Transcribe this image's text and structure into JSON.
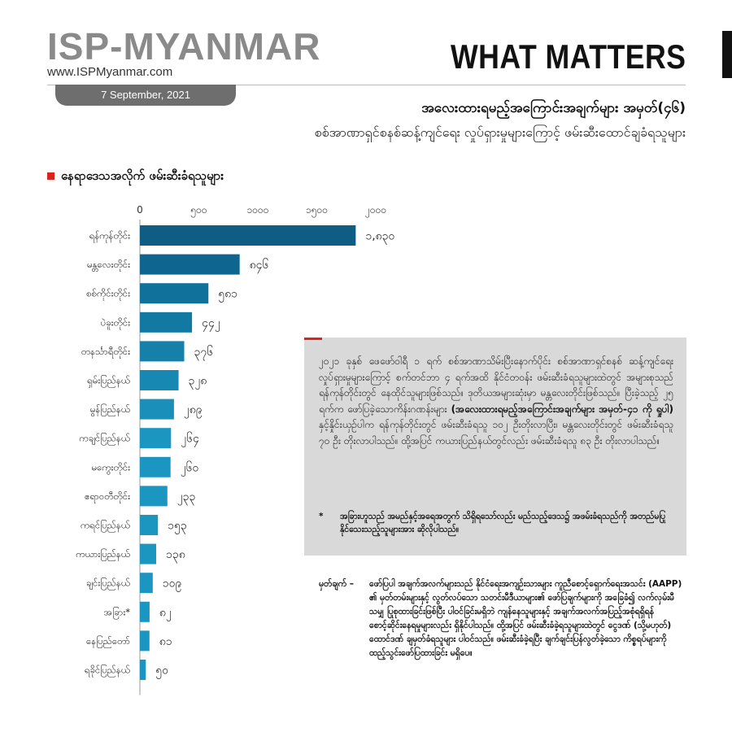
{
  "header": {
    "logo": "ISP-MYANMAR",
    "website": "www.ISPMyanmar.com",
    "date": "7 September, 2021",
    "brand": "WHAT MATTERS"
  },
  "titles": {
    "line1": "အလေးထားရမည့်အကြောင်းအချက်များ အမှတ်(၄၆)",
    "line2": "စစ်အာဏာရှင်စနစ်ဆန့်ကျင်ရေး လှုပ်ရှားမှုများကြောင့် ဖမ်းဆီးထောင်ချခံရသူများ"
  },
  "section_title": "နေရာဒေသအလိုက် ဖမ်းဆီးခံရသူများ",
  "chart_data": {
    "type": "bar",
    "orientation": "horizontal",
    "categories": [
      "ရန်ကုန်တိုင်း",
      "မန္တလေးတိုင်း",
      "စစ်ကိုင်းတိုင်း",
      "ပဲခူးတိုင်း",
      "တနင်္သာရီတိုင်း",
      "ရှမ်းပြည်နယ်",
      "မွန်ပြည်နယ်",
      "ကချင်ပြည်နယ်",
      "မကွေးတိုင်း",
      "ဧရာဝတီတိုင်း",
      "ကရင်ပြည်နယ်",
      "ကယားပြည်နယ်",
      "ချင်းပြည်နယ်",
      "အခြား*",
      "နေပြည်တော်",
      "ရခိုင်ပြည်နယ်"
    ],
    "values": [
      1830,
      846,
      581,
      442,
      376,
      328,
      289,
      264,
      260,
      233,
      153,
      138,
      109,
      82,
      81,
      50
    ],
    "value_labels": [
      "၁,၈၃၀",
      "၈၄၆",
      "၅၈၁",
      "၄၄၂",
      "၃၇၆",
      "၃၂၈",
      "၂၈၉",
      "၂၆၄",
      "၂၆၀",
      "၂၃၃",
      "၁၅၃",
      "၁၃၈",
      "၁၀၉",
      "၈၂",
      "၈၁",
      "၅၀"
    ],
    "ticks": [
      0,
      500,
      1000,
      1500,
      2000
    ],
    "tick_labels": [
      "0",
      "၅၀၀",
      "၁၀၀၀",
      "၁၅၀၀",
      "၂၀၀၀"
    ],
    "xlim": [
      0,
      2000
    ],
    "title": "နေရာဒေသအလိုက် ဖမ်းဆီးခံရသူများ",
    "xlabel": "",
    "ylabel": "",
    "grid": false,
    "colors": [
      "#0f5c85",
      "#0e6690",
      "#10719b",
      "#1279a3",
      "#1580aa",
      "#1788b2",
      "#198fb9",
      "#1b96c0",
      "#1b96c0",
      "#1b96c0",
      "#1b96c0",
      "#1b96c0",
      "#1b96c0",
      "#1b96c0",
      "#1b96c0",
      "#1b96c0"
    ]
  },
  "infobox": {
    "paragraph_before": "၂၀၂၁ ခုနှစ် ဖေဖော်ဝါရီ ၁ ရက် စစ်အာဏာသိမ်းပြီးနောက်ပိုင်း စစ်အာဏာရှင်စနစ် ဆန့်ကျင်ရေး လှုပ်ရှားမှုများကြောင့် စက်တင်ဘာ ၄ ရက်အထိ နိုင်ငံတဝန်း ဖမ်းဆီးခံရသူများထဲတွင် အများစုသည် ရန်ကုန်တိုင်းတွင် နေထိုင်သူများဖြစ်သည်။ ဒုတိယအများဆုံးမှာ မန္တလေးတိုင်းဖြစ်သည်။ ပြီးခဲ့သည့် ၂၅ ရက်က ဖော်ပြခဲ့သောကိန်းဂဏန်းများ ",
    "paragraph_bold": "(အလေးထားရမည့်အကြောင်းအချက်များ အမှတ်-၄၁ ကို ရှုပါ)",
    "paragraph_after": " နှင့်နှိုင်းယှဉ်ပါက ရန်ကုန်တိုင်းတွင် ဖမ်းဆီးခံရသူ ၁၀၂ ဦးတိုးလာပြီး၊ မန္တလေးတိုင်းတွင် ဖမ်းဆီးခံရသူ ၇၀ ဦး တိုးလာပါသည်။ ထို့အပြင် ကယားပြည်နယ်တွင်လည်း ဖမ်းဆီးခံရသူ ၈၃ ဦး တိုးလာပါသည်။",
    "footnote_mark": "*",
    "footnote": "အခြားဟူသည် အမည်နှင့်အရေအတွက် သိရှိရသော်လည်း မည်သည့်ဒေသ၌ အဖမ်းခံရသည်ကို အတည်မပြုနိုင်သေးသည့်သူများအား ဆိုလိုပါသည်။"
  },
  "note": {
    "label": "မှတ်ချက် –",
    "text": "ဖော်ပြပါ အချက်အလက်များသည် နိုင်ငံရေးအကျဉ်းသားများ ကူညီစောင့်ရှောက်ရေးအသင်း (AAPP) ၏ မှတ်တမ်းများနှင့် လွတ်လပ်သော သတင်းမီဒီယာများ၏ ဖော်ပြချက်များကို အခြေခံ၍ လက်လှမ်းမီသမျှ ပြုစုထားခြင်းဖြစ်ပြီး ပါဝင်ခြင်းမရှိဘဲ ကျန်နေသူများနှင့် အချက်အလက်အပြည့်အစုံရရှိရန် စောင့်ဆိုင်းနေရမှုများလည်း ရှိနိုင်ပါသည်။ ထို့အပြင် ဖမ်းဆီးခံခဲ့ရသူများထဲတွင် ငွေဒဏ် (သို့မဟုတ်) ထောင်ဒဏ် ချမှတ်ခံရသူများ ပါဝင်သည်။ ဖမ်းဆီးခံခဲ့ရပြီး ချက်ချင်းပြန်လွတ်ခဲ့သော ကိစ္စရပ်များကို ထည့်သွင်းဖော်ပြထားခြင်း မရှိပေ။"
  }
}
